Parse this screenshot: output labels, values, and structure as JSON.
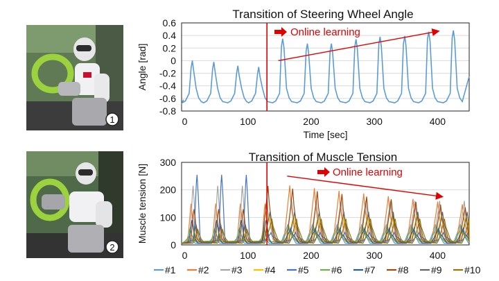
{
  "photos": [
    {
      "badge": "1"
    },
    {
      "badge": "2"
    }
  ],
  "colors": {
    "annotation": "#e00000",
    "series": [
      "#5b9bd5",
      "#ed7d31",
      "#a5a5a5",
      "#ffc000",
      "#4472c4",
      "#70ad47",
      "#255e91",
      "#9e480e",
      "#636363",
      "#997300"
    ],
    "angle_line": "#5b9bd5"
  },
  "chart_data": [
    {
      "type": "line",
      "title": "Transition of Steering Wheel Angle",
      "xlabel": "Time [sec]",
      "ylabel": "Angle [rad]",
      "xlim": [
        -5,
        450
      ],
      "ylim": [
        -0.8,
        0.6
      ],
      "xticks": [
        0,
        100,
        200,
        300,
        400
      ],
      "yticks": [
        "-0.8",
        "-0.6",
        "-0.4",
        "-0.2",
        "0",
        "0.2",
        "0.4",
        "0.6"
      ],
      "learning_start_x": 130,
      "annotation": "Online learning",
      "trend_arrow": {
        "from": [
          148,
          0.0
        ],
        "to": [
          402,
          0.47
        ]
      },
      "series": [
        {
          "name": "Steering wheel angle",
          "period": 39,
          "peak_times": [
            12,
            46,
            84,
            117,
            155,
            194,
            232,
            271,
            309,
            348,
            386,
            425
          ],
          "peak_values": [
            0.0,
            -0.02,
            -0.08,
            -0.1,
            0.35,
            0.27,
            0.27,
            0.34,
            0.38,
            0.39,
            0.46,
            0.48
          ],
          "trough_value": -0.67
        }
      ]
    },
    {
      "type": "line",
      "title": "Transition of Muscle Tension",
      "xlabel": "",
      "ylabel": "Muscle tension [N]",
      "xlim": [
        -5,
        450
      ],
      "ylim": [
        0,
        300
      ],
      "xticks": [
        0,
        100,
        200,
        300,
        400
      ],
      "yticks": [
        "0",
        "100",
        "200",
        "300"
      ],
      "learning_start_x": 130,
      "annotation": "Online learning",
      "trend_arrow": {
        "from": [
          162,
          250
        ],
        "to": [
          408,
          175
        ]
      },
      "legend_labels": [
        "#1",
        "#2",
        "#3",
        "#4",
        "#5",
        "#6",
        "#7",
        "#8",
        "#9",
        "#10"
      ],
      "series": [
        {
          "name": "#1",
          "peak_before": 30,
          "peak_after": 75
        },
        {
          "name": "#2",
          "peak_before": 150,
          "peak_after": 220
        },
        {
          "name": "#3",
          "peak_before": 215,
          "peak_after": 160
        },
        {
          "name": "#4",
          "peak_before": 40,
          "peak_after": 110
        },
        {
          "name": "#5",
          "peak_before": 255,
          "peak_after": 45
        },
        {
          "name": "#6",
          "peak_before": 60,
          "peak_after": 70
        },
        {
          "name": "#7",
          "peak_before": 90,
          "peak_after": 60
        },
        {
          "name": "#8",
          "peak_before": 130,
          "peak_after": 210
        },
        {
          "name": "#9",
          "peak_before": 75,
          "peak_after": 120
        },
        {
          "name": "#10",
          "peak_before": 55,
          "peak_after": 95
        }
      ]
    }
  ]
}
